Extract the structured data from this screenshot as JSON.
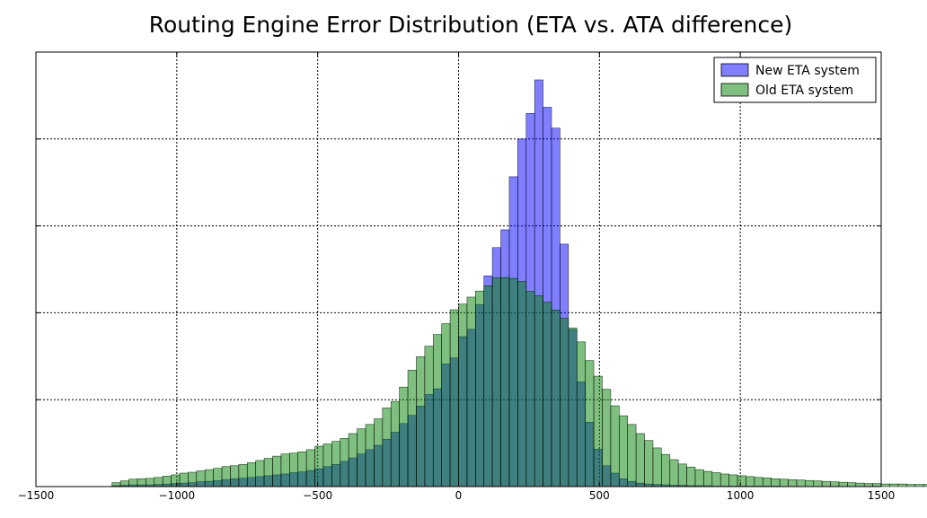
{
  "chart_data": {
    "type": "bar",
    "subtype": "histogram",
    "title": "Routing Engine Error Distribution (ETA vs. ATA difference)",
    "xlabel": "",
    "ylabel": "",
    "xlim": [
      -1500,
      1500
    ],
    "ylim": [
      0,
      1
    ],
    "xticks": [
      -1500,
      -1000,
      -500,
      0,
      500,
      1000,
      1500
    ],
    "xtick_labels": [
      "−1500",
      "−1000",
      "−500",
      "0",
      "500",
      "1000",
      "1500"
    ],
    "ygrid_fractions": [
      0.2,
      0.4,
      0.6,
      0.8
    ],
    "y_tick_labels_shown": false,
    "grid": true,
    "legend_position": "top-right",
    "bin_width": 30,
    "bins_start": -1230,
    "series": [
      {
        "name": "New ETA system",
        "color": "#0000ff",
        "alpha": 0.5,
        "values": [
          0.002,
          0.003,
          0.004,
          0.004,
          0.004,
          0.005,
          0.006,
          0.007,
          0.008,
          0.009,
          0.011,
          0.012,
          0.014,
          0.016,
          0.018,
          0.019,
          0.021,
          0.023,
          0.025,
          0.027,
          0.029,
          0.032,
          0.034,
          0.037,
          0.041,
          0.046,
          0.051,
          0.058,
          0.066,
          0.075,
          0.085,
          0.095,
          0.109,
          0.125,
          0.145,
          0.164,
          0.185,
          0.212,
          0.225,
          0.282,
          0.296,
          0.345,
          0.362,
          0.419,
          0.485,
          0.55,
          0.591,
          0.713,
          0.8,
          0.859,
          0.936,
          0.873,
          0.825,
          0.558,
          0.361,
          0.241,
          0.148,
          0.086,
          0.048,
          0.031,
          0.018,
          0.012,
          0.008,
          0.006,
          0.005,
          0.004,
          0.003,
          0.003,
          0.002,
          0.002,
          0.002,
          0.001,
          0.001,
          0.001,
          0.001,
          0.001,
          0.001,
          0.001,
          0.001
        ]
      },
      {
        "name": "Old ETA system",
        "color": "#008000",
        "alpha": 0.5,
        "values": [
          0.009,
          0.013,
          0.017,
          0.018,
          0.019,
          0.021,
          0.024,
          0.027,
          0.031,
          0.033,
          0.036,
          0.039,
          0.042,
          0.046,
          0.048,
          0.051,
          0.055,
          0.06,
          0.065,
          0.07,
          0.075,
          0.077,
          0.08,
          0.085,
          0.093,
          0.098,
          0.104,
          0.111,
          0.122,
          0.133,
          0.143,
          0.156,
          0.181,
          0.196,
          0.229,
          0.268,
          0.299,
          0.323,
          0.35,
          0.375,
          0.407,
          0.42,
          0.436,
          0.45,
          0.462,
          0.48,
          0.481,
          0.479,
          0.472,
          0.449,
          0.439,
          0.424,
          0.406,
          0.387,
          0.365,
          0.333,
          0.29,
          0.254,
          0.224,
          0.186,
          0.163,
          0.143,
          0.122,
          0.106,
          0.089,
          0.074,
          0.062,
          0.052,
          0.045,
          0.039,
          0.035,
          0.032,
          0.029,
          0.027,
          0.025,
          0.023,
          0.021,
          0.02,
          0.018,
          0.017,
          0.016,
          0.015,
          0.014,
          0.013,
          0.012,
          0.011,
          0.01,
          0.009,
          0.008,
          0.007,
          0.007,
          0.006,
          0.006,
          0.006,
          0.005,
          0.005,
          0.005,
          0.005,
          0.005,
          0.004,
          0.004,
          0.004,
          0.004,
          0.004,
          0.004,
          0.003,
          0.003,
          0.003,
          0.003,
          0.003,
          0.003,
          0.003,
          0.003,
          0.003,
          0.002,
          0.002,
          0.002,
          0.002
        ]
      }
    ]
  }
}
